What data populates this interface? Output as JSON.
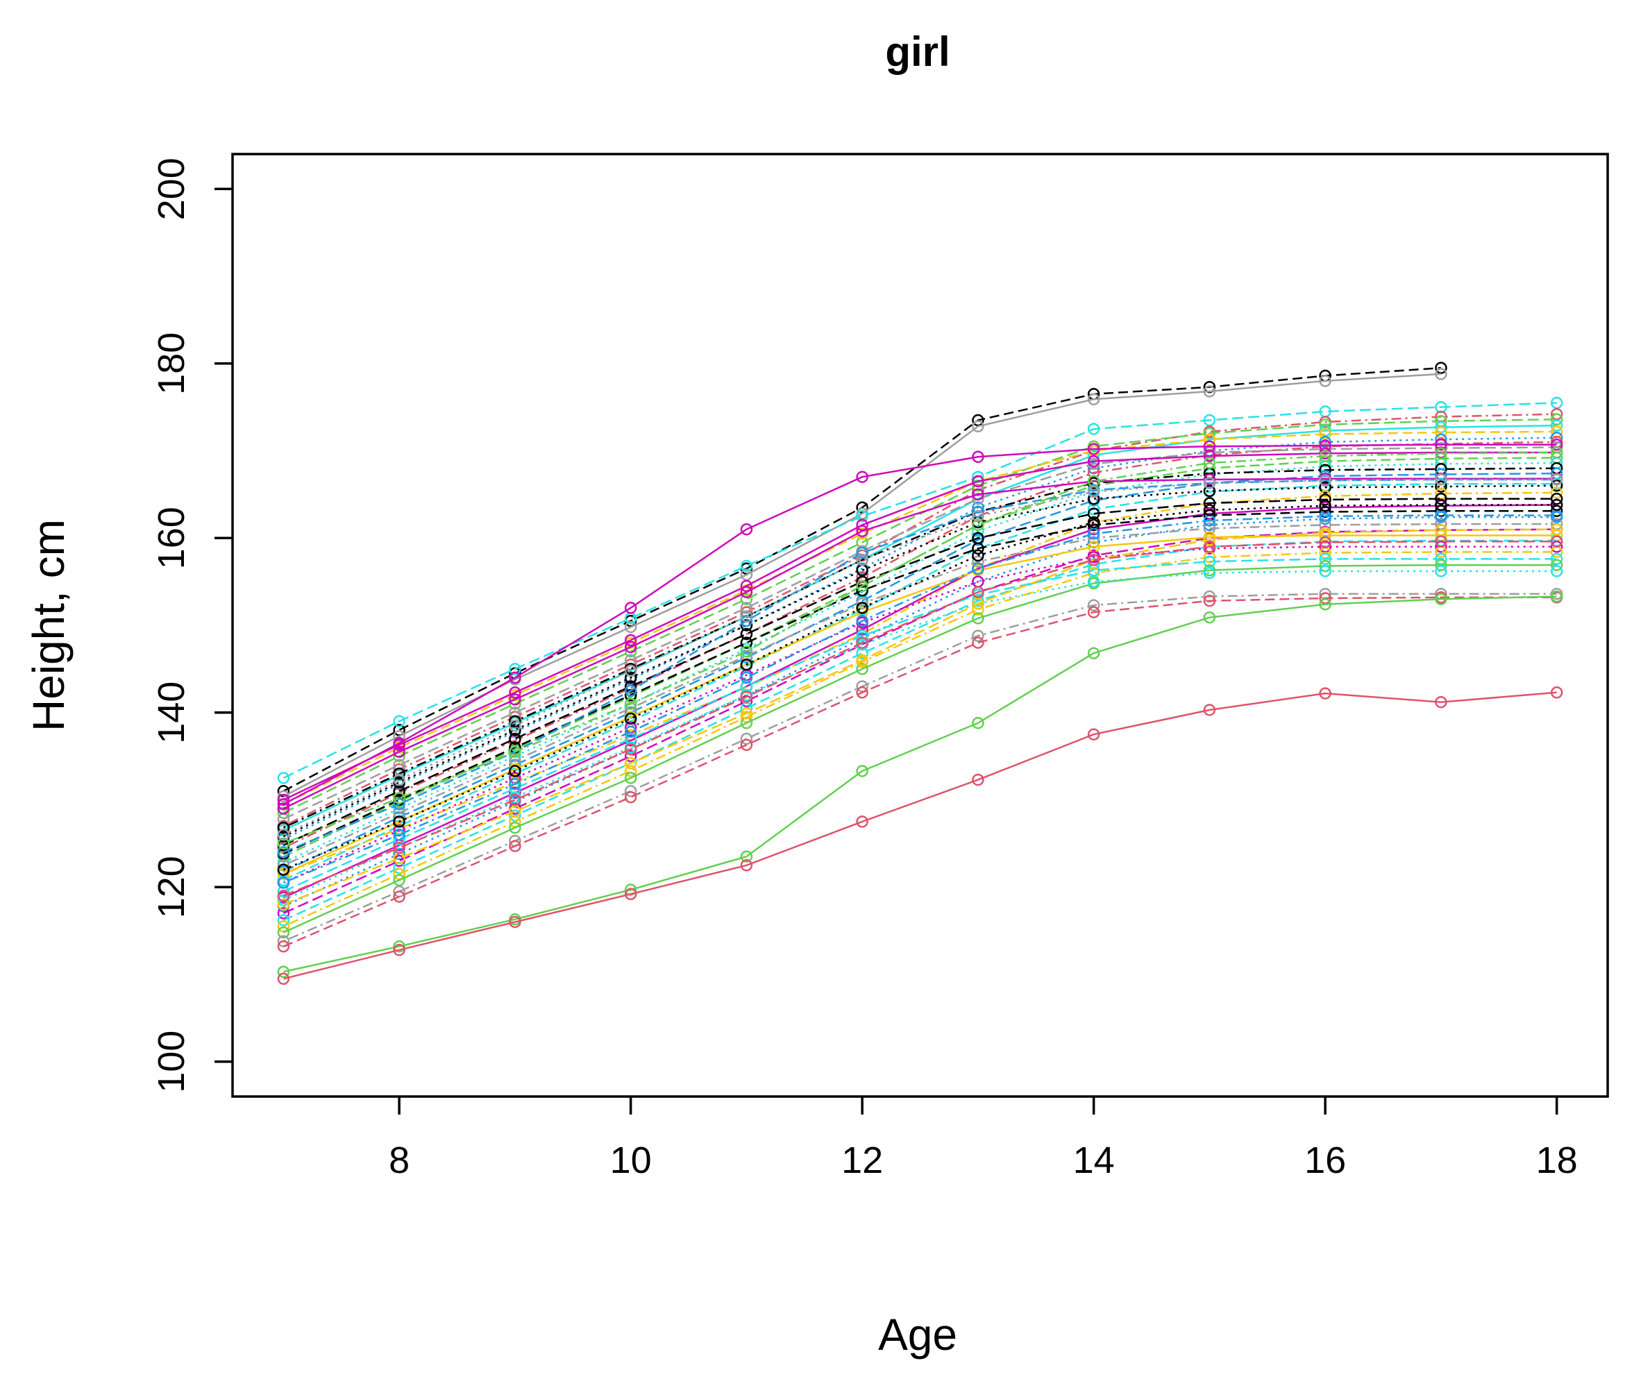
{
  "chart_data": {
    "type": "line",
    "title": "girl",
    "xlabel": "Age",
    "ylabel": "Height, cm",
    "x_ticks": [
      8,
      10,
      12,
      14,
      16,
      18
    ],
    "y_ticks": [
      100,
      120,
      140,
      160,
      180,
      200
    ],
    "xlim": [
      6.56,
      18.44
    ],
    "ylim": [
      96,
      204
    ],
    "grid": false,
    "legend": "none",
    "marker": "open-circle",
    "ages_default": [
      7,
      8,
      9,
      10,
      11,
      12,
      13,
      14,
      15,
      16,
      17,
      18
    ],
    "palette": {
      "black": "#000000",
      "red": "#DF536B",
      "green": "#61D04F",
      "blue": "#2297E6",
      "cyan": "#28E2E5",
      "magenta": "#CD0BBC",
      "yellow": "#F5C710",
      "gray": "#9E9E9E"
    },
    "series": [
      {
        "color": "#000000",
        "lty": 2,
        "ages": [
          7,
          8,
          9,
          10,
          11,
          12,
          13,
          14,
          15,
          16,
          17
        ],
        "values": [
          131,
          138,
          144.5,
          150.5,
          156.5,
          163.5,
          173.5,
          176.5,
          177.3,
          178.6,
          179.5
        ]
      },
      {
        "color": "#9E9E9E",
        "lty": 1,
        "ages": [
          7,
          8,
          9,
          10,
          11,
          12,
          13,
          14,
          15,
          16,
          17
        ],
        "values": [
          130.4,
          137.3,
          143.8,
          149.8,
          155.8,
          162.8,
          172.8,
          175.9,
          176.8,
          178,
          178.8
        ]
      },
      {
        "color": "#28E2E5",
        "lty": 5,
        "values": [
          132.5,
          139,
          145,
          150.8,
          156.8,
          162.5,
          167,
          172.5,
          173.5,
          174.5,
          175,
          175.5
        ]
      },
      {
        "color": "#DF536B",
        "lty": 4,
        "values": [
          127,
          133.5,
          139.5,
          145.5,
          151.5,
          158,
          165.5,
          170,
          172.2,
          173.3,
          173.9,
          174.2
        ]
      },
      {
        "color": "#61D04F",
        "lty": 5,
        "values": [
          128.5,
          135,
          141,
          147,
          153,
          159.5,
          166,
          170.5,
          172,
          173,
          173.4,
          173.6
        ]
      },
      {
        "color": "#28E2E5",
        "lty": 1,
        "values": [
          126.5,
          132.8,
          138.8,
          144.8,
          151,
          157.5,
          164.5,
          169.5,
          171.3,
          172.3,
          172.7,
          172.9
        ]
      },
      {
        "color": "#F5C710",
        "lty": 2,
        "values": [
          129.5,
          136,
          142,
          148,
          154,
          160.5,
          166.5,
          170,
          171.3,
          171.9,
          172.1,
          172.2
        ]
      },
      {
        "color": "#2297E6",
        "lty": 3,
        "values": [
          125.5,
          131.8,
          137.8,
          143.8,
          150,
          156.5,
          163.5,
          168,
          170,
          171,
          171.3,
          171.5
        ]
      },
      {
        "color": "#DF536B",
        "lty": 4,
        "values": [
          124.5,
          130.8,
          136.8,
          142.8,
          149,
          155.5,
          162.5,
          167.5,
          169.5,
          170.5,
          170.8,
          171
        ]
      },
      {
        "color": "#9E9E9E",
        "lty": 5,
        "values": [
          127.8,
          134,
          140,
          146,
          152,
          158.5,
          164.5,
          168.5,
          169.8,
          170.2,
          170.3,
          170.4
        ]
      },
      {
        "color": "#CD0BBC",
        "lty": 1,
        "values": [
          130,
          136.3,
          142.3,
          148.3,
          154.5,
          161.5,
          166.5,
          168.8,
          169.4,
          169.7,
          169.8,
          169.8
        ]
      },
      {
        "color": "#61D04F",
        "lty": 2,
        "values": [
          123.5,
          129.8,
          135.8,
          141.8,
          148,
          154.5,
          161.5,
          166,
          168,
          168.8,
          169.1,
          169.2
        ]
      },
      {
        "color": "#28E2E5",
        "lty": 3,
        "values": [
          122.8,
          129,
          135,
          141,
          147.3,
          153.8,
          160.8,
          165.3,
          167.3,
          168.2,
          168.5,
          168.6
        ]
      },
      {
        "color": "#000000",
        "lty": 4,
        "values": [
          126.8,
          133,
          139,
          145,
          151,
          157.5,
          163,
          166.3,
          167.4,
          167.8,
          167.9,
          168
        ]
      },
      {
        "color": "#2297E6",
        "lty": 5,
        "values": [
          121.8,
          128,
          134,
          140,
          146.3,
          152.8,
          159.8,
          164.3,
          166.3,
          167.1,
          167.3,
          167.4
        ]
      },
      {
        "color": "#CD0BBC",
        "lty": 1,
        "values": [
          129,
          135.5,
          141.5,
          147.5,
          153.8,
          160.8,
          165,
          166.5,
          166.7,
          166.8,
          166.8,
          166.8
        ]
      },
      {
        "color": "#28E2E5",
        "lty": 2,
        "values": [
          120.8,
          127,
          133,
          139,
          145.3,
          151.8,
          158.8,
          163.3,
          165.3,
          166,
          166.2,
          166.2
        ]
      },
      {
        "color": "#000000",
        "lty": 3,
        "values": [
          125.8,
          132,
          138,
          144,
          150,
          156.3,
          161.8,
          164.5,
          165.4,
          165.8,
          165.9,
          166
        ]
      },
      {
        "color": "#F5C710",
        "lty": 4,
        "values": [
          121.5,
          126.7,
          132,
          137.4,
          142.9,
          149,
          156.5,
          161.8,
          164,
          164.8,
          165.1,
          165.2
        ]
      },
      {
        "color": "#000000",
        "lty": 5,
        "values": [
          124.8,
          131,
          137,
          143,
          149,
          155,
          160,
          162.8,
          164,
          164.4,
          164.5,
          164.5
        ]
      },
      {
        "color": "#CD0BBC",
        "lty": 1,
        "values": [
          118.8,
          124.8,
          130.8,
          136.8,
          143,
          149.5,
          156.5,
          161,
          162.8,
          163.5,
          163.7,
          163.8
        ]
      },
      {
        "color": "#000000",
        "lty": 2,
        "values": [
          123.8,
          130,
          136,
          142,
          148,
          154,
          158.8,
          161.5,
          162.6,
          163,
          163.1,
          163.1
        ]
      },
      {
        "color": "#2297E6",
        "lty": 3,
        "values": [
          117.8,
          123.8,
          129.8,
          135.8,
          142,
          148.5,
          155,
          159.5,
          161.5,
          162.2,
          162.4,
          162.4
        ]
      },
      {
        "color": "#9E9E9E",
        "lty": 4,
        "values": [
          122.5,
          128.5,
          134.5,
          140.5,
          146.5,
          152.5,
          157.3,
          160,
          161.1,
          161.5,
          161.6,
          161.6
        ]
      },
      {
        "color": "#CD0BBC",
        "lty": 5,
        "values": [
          117,
          123,
          129,
          135,
          141.3,
          147.8,
          153.8,
          158,
          160,
          160.7,
          160.9,
          161
        ]
      },
      {
        "color": "#F5C710",
        "lty": 1,
        "values": [
          121.5,
          127.5,
          133.5,
          139.5,
          145.5,
          151.5,
          156.3,
          159,
          160.1,
          160.3,
          160.3,
          160.3
        ]
      },
      {
        "color": "#28E2E5",
        "lty": 2,
        "values": [
          116.2,
          122.2,
          128.2,
          134.2,
          140.5,
          146.8,
          152.8,
          157,
          159,
          159.6,
          159.7,
          159.7
        ]
      },
      {
        "color": "#CD0BBC",
        "lty": 3,
        "values": [
          120.5,
          126.5,
          132.5,
          138.3,
          144.3,
          150.3,
          155,
          157.8,
          158.8,
          159,
          159,
          159
        ]
      },
      {
        "color": "#F5C710",
        "lty": 4,
        "values": [
          115.5,
          121.5,
          127.5,
          133.3,
          139.5,
          145.8,
          151.8,
          156,
          157.8,
          158.3,
          158.4,
          158.4
        ]
      },
      {
        "color": "#28E2E5",
        "lty": 5,
        "values": [
          119.5,
          125.5,
          131.3,
          137,
          143,
          148.8,
          153.5,
          156.3,
          157.3,
          157.6,
          157.6,
          157.6
        ]
      },
      {
        "color": "#61D04F",
        "lty": 1,
        "values": [
          114.8,
          120.8,
          126.8,
          132.5,
          138.8,
          145,
          150.8,
          154.8,
          156.3,
          156.8,
          156.9,
          156.9
        ]
      },
      {
        "color": "#28E2E5",
        "lty": 3,
        "values": [
          118.5,
          124.5,
          130.3,
          136,
          142,
          147.8,
          152.5,
          155,
          156,
          156.2,
          156.2,
          156.2
        ]
      },
      {
        "color": "#9E9E9E",
        "lty": 4,
        "values": [
          113.8,
          119.5,
          125.3,
          131,
          137,
          143,
          148.8,
          152.3,
          153.3,
          153.6,
          153.6,
          153.6
        ]
      },
      {
        "color": "#DF536B",
        "lty": 2,
        "values": [
          113.2,
          118.9,
          124.7,
          130.3,
          136.3,
          142.3,
          148,
          151.5,
          152.8,
          153.1,
          153.2,
          153.2
        ]
      },
      {
        "color": "#61D04F",
        "lty": 1,
        "values": [
          110.3,
          113.2,
          116.3,
          119.7,
          123.5,
          133.3,
          138.8,
          146.8,
          150.9,
          152.4,
          153,
          153.3
        ]
      },
      {
        "color": "#DF536B",
        "lty": 1,
        "values": [
          109.5,
          112.8,
          116,
          119.2,
          122.5,
          127.5,
          132.3,
          137.5,
          140.3,
          142.2,
          141.2,
          142.3
        ]
      },
      {
        "color": "#2297E6",
        "lty": 2,
        "values": [
          124,
          129.5,
          135.5,
          142.5,
          150.5,
          158.3,
          163,
          165.5,
          166.3,
          166.6,
          166.7,
          166.7
        ]
      },
      {
        "color": "#CD0BBC",
        "lty": 1,
        "values": [
          129.5,
          136.5,
          144,
          152,
          161,
          167,
          169.3,
          170.2,
          170.5,
          170.6,
          170.7,
          170.7
        ]
      },
      {
        "color": "#61D04F",
        "lty": 4,
        "values": [
          125,
          130.2,
          135.5,
          141,
          147,
          154.5,
          161.5,
          166.5,
          168.6,
          169.4,
          169.7,
          169.8
        ]
      },
      {
        "color": "#F5C710",
        "lty": 5,
        "values": [
          118,
          123.3,
          128.7,
          134.2,
          139.9,
          146,
          152.5,
          157.5,
          159.8,
          160.6,
          160.9,
          161
        ]
      },
      {
        "color": "#9E9E9E",
        "lty": 3,
        "values": [
          126,
          132.3,
          138.5,
          144.8,
          151,
          157.5,
          162.5,
          165.3,
          166.3,
          166.6,
          166.7,
          166.7
        ]
      },
      {
        "color": "#DF536B",
        "lty": 5,
        "values": [
          119,
          124.5,
          130,
          135.8,
          141.8,
          148,
          153.8,
          157.5,
          159,
          159.5,
          159.6,
          159.6
        ]
      },
      {
        "color": "#2297E6",
        "lty": 4,
        "values": [
          120.5,
          126,
          131.8,
          137.8,
          144,
          150.5,
          156.5,
          160.5,
          162,
          162.5,
          162.6,
          162.6
        ]
      },
      {
        "color": "#000000",
        "lty": 3,
        "values": [
          122,
          127.5,
          133.3,
          139.3,
          145.5,
          152,
          158,
          161.8,
          163.2,
          163.7,
          163.8,
          163.8
        ]
      }
    ]
  }
}
